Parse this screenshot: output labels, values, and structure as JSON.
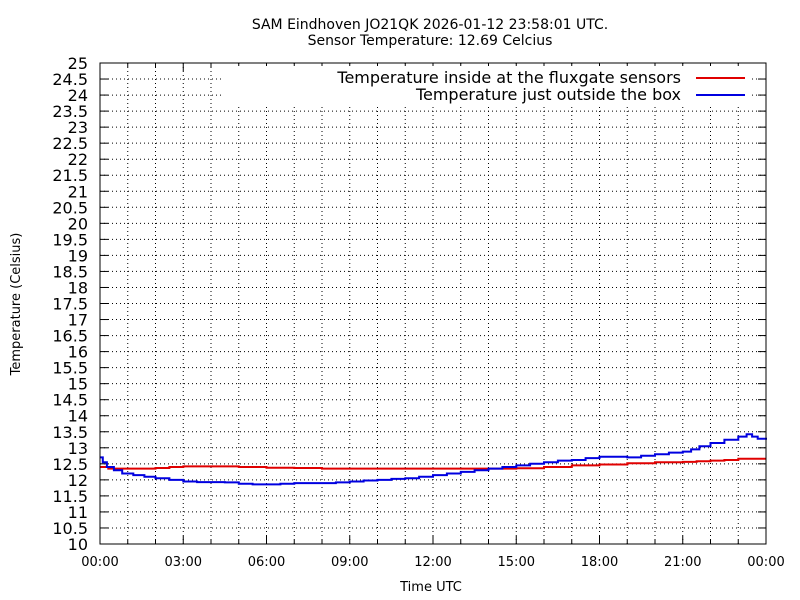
{
  "chart_data": {
    "type": "line",
    "title": "SAM Eindhoven JO21QK 2026-01-12 23:58:01 UTC.",
    "subtitle": "Sensor Temperature: 12.69 Celcius",
    "xlabel": "Time UTC",
    "ylabel": "Temperature (Celsius)",
    "xlim": [
      0,
      24
    ],
    "ylim": [
      10,
      25
    ],
    "grid": true,
    "legend_position": "top-right",
    "x_tick_labels": [
      "00:00",
      "03:00",
      "06:00",
      "09:00",
      "12:00",
      "15:00",
      "18:00",
      "21:00",
      "00:00"
    ],
    "y_tick_labels": [
      "10",
      "10.5",
      "11",
      "11.5",
      "12",
      "12.5",
      "13",
      "13.5",
      "14",
      "14.5",
      "15",
      "15.5",
      "16",
      "16.5",
      "17",
      "17.5",
      "18",
      "18.5",
      "19",
      "19.5",
      "20",
      "20.5",
      "21",
      "21.5",
      "22",
      "22.5",
      "23",
      "23.5",
      "24",
      "24.5",
      "25"
    ],
    "series": [
      {
        "name": "Temperature inside at the fluxgate sensors",
        "color": "#e00000",
        "points": [
          [
            0.0,
            12.4
          ],
          [
            0.3,
            12.35
          ],
          [
            1.0,
            12.35
          ],
          [
            2.0,
            12.37
          ],
          [
            2.5,
            12.4
          ],
          [
            3.0,
            12.42
          ],
          [
            4.0,
            12.42
          ],
          [
            5.0,
            12.4
          ],
          [
            5.5,
            12.4
          ],
          [
            6.0,
            12.38
          ],
          [
            7.0,
            12.37
          ],
          [
            8.0,
            12.35
          ],
          [
            9.0,
            12.35
          ],
          [
            10.0,
            12.35
          ],
          [
            11.0,
            12.35
          ],
          [
            12.0,
            12.35
          ],
          [
            13.0,
            12.35
          ],
          [
            14.0,
            12.35
          ],
          [
            15.0,
            12.36
          ],
          [
            16.0,
            12.4
          ],
          [
            17.0,
            12.45
          ],
          [
            18.0,
            12.48
          ],
          [
            19.0,
            12.52
          ],
          [
            20.0,
            12.55
          ],
          [
            21.0,
            12.56
          ],
          [
            21.5,
            12.58
          ],
          [
            22.0,
            12.6
          ],
          [
            22.5,
            12.62
          ],
          [
            23.0,
            12.66
          ],
          [
            24.0,
            12.66
          ]
        ]
      },
      {
        "name": "Temperature just outside the box",
        "color": "#0000e0",
        "points": [
          [
            0.0,
            12.7
          ],
          [
            0.1,
            12.55
          ],
          [
            0.25,
            12.4
          ],
          [
            0.5,
            12.3
          ],
          [
            0.8,
            12.2
          ],
          [
            1.2,
            12.15
          ],
          [
            1.6,
            12.1
          ],
          [
            2.0,
            12.05
          ],
          [
            2.5,
            12.0
          ],
          [
            3.0,
            11.95
          ],
          [
            3.5,
            11.93
          ],
          [
            4.0,
            11.93
          ],
          [
            4.5,
            11.92
          ],
          [
            5.0,
            11.88
          ],
          [
            5.5,
            11.86
          ],
          [
            6.0,
            11.86
          ],
          [
            6.5,
            11.88
          ],
          [
            7.0,
            11.9
          ],
          [
            7.5,
            11.9
          ],
          [
            8.0,
            11.9
          ],
          [
            8.5,
            11.92
          ],
          [
            9.0,
            11.95
          ],
          [
            9.5,
            11.98
          ],
          [
            10.0,
            12.0
          ],
          [
            10.5,
            12.03
          ],
          [
            11.0,
            12.05
          ],
          [
            11.5,
            12.1
          ],
          [
            12.0,
            12.15
          ],
          [
            12.5,
            12.2
          ],
          [
            13.0,
            12.25
          ],
          [
            13.5,
            12.3
          ],
          [
            14.0,
            12.35
          ],
          [
            14.5,
            12.4
          ],
          [
            15.0,
            12.45
          ],
          [
            15.5,
            12.5
          ],
          [
            16.0,
            12.55
          ],
          [
            16.5,
            12.6
          ],
          [
            17.0,
            12.62
          ],
          [
            17.5,
            12.68
          ],
          [
            18.0,
            12.72
          ],
          [
            18.5,
            12.72
          ],
          [
            19.0,
            12.7
          ],
          [
            19.5,
            12.75
          ],
          [
            20.0,
            12.8
          ],
          [
            20.5,
            12.85
          ],
          [
            21.0,
            12.88
          ],
          [
            21.3,
            12.95
          ],
          [
            21.6,
            13.05
          ],
          [
            22.0,
            13.15
          ],
          [
            22.5,
            13.25
          ],
          [
            23.0,
            13.35
          ],
          [
            23.3,
            13.42
          ],
          [
            23.5,
            13.35
          ],
          [
            23.7,
            13.28
          ],
          [
            24.0,
            13.25
          ]
        ]
      }
    ]
  }
}
